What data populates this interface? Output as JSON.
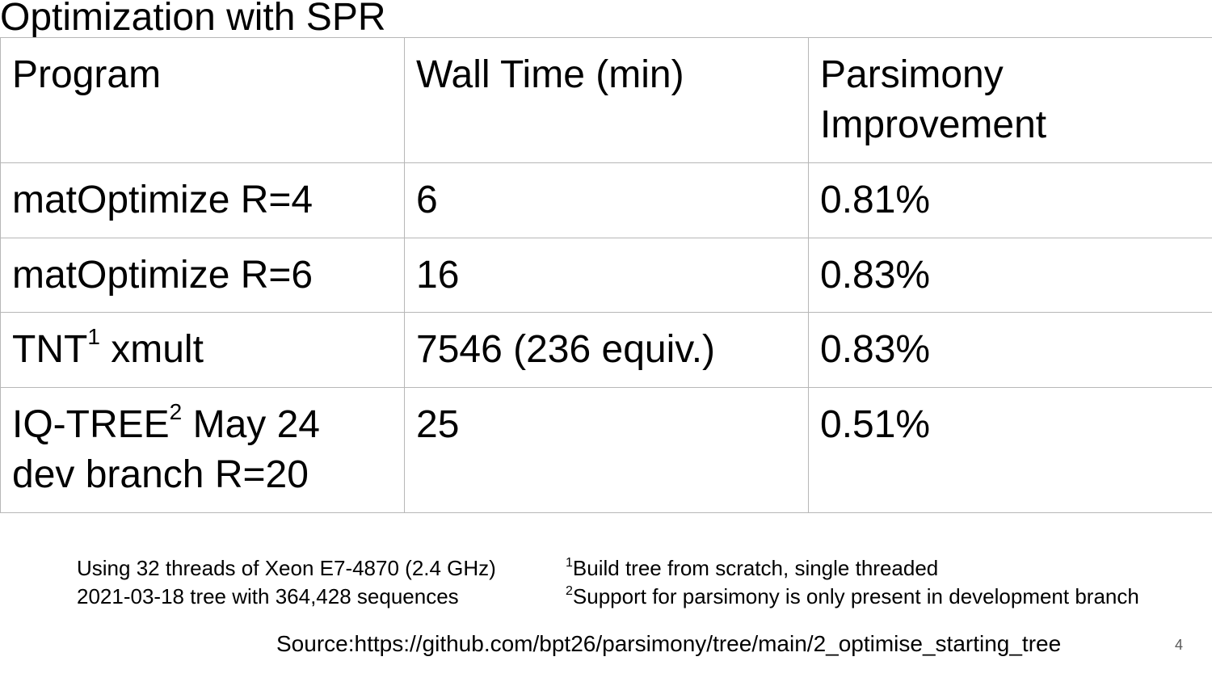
{
  "slide": {
    "title": "Optimization with SPR",
    "page_number": "4"
  },
  "table": {
    "headers": [
      "Program",
      "Wall Time (min)",
      "Parsimony Improvement"
    ],
    "rows": [
      {
        "program": "matOptimize R=4",
        "wall_time": "6",
        "improvement": "0.81%"
      },
      {
        "program": "matOptimize R=6",
        "wall_time": "16",
        "improvement": "0.83%"
      },
      {
        "program_name": "TNT",
        "program_sup": "1",
        "program_rest": " xmult",
        "wall_time": "7546 (236 equiv.)",
        "improvement": "0.83%"
      },
      {
        "program_name": "IQ-TREE",
        "program_sup": "2",
        "program_rest": " May 24 dev branch R=20",
        "wall_time": "25",
        "improvement": "0.51%"
      }
    ]
  },
  "notes": {
    "left": [
      "Using 32 threads of Xeon E7-4870 (2.4 GHz)",
      "2021-03-18 tree with 364,428  sequences"
    ],
    "footnotes": [
      {
        "marker": "1",
        "text": "Build tree from scratch, single threaded"
      },
      {
        "marker": "2",
        "text": "Support for parsimony is only present in development branch"
      }
    ]
  },
  "source": "Source:https://github.com/bpt26/parsimony/tree/main/2_optimise_starting_tree"
}
